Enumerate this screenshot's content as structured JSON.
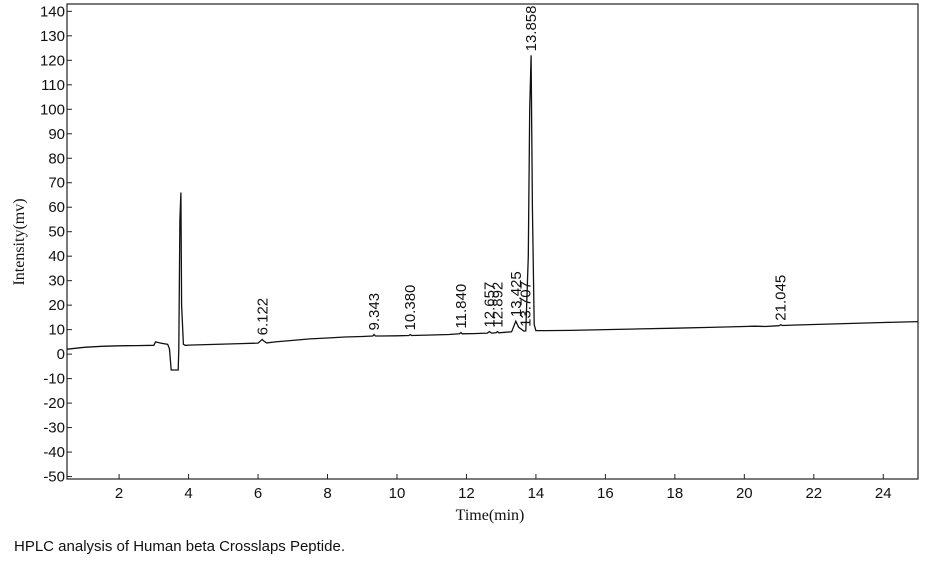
{
  "caption": "HPLC analysis of Human beta Crosslaps Peptide.",
  "chart_data": {
    "type": "line",
    "title": "",
    "xlabel": "Time(min)",
    "ylabel": "Intensity(mv)",
    "xlim": [
      0.5,
      25
    ],
    "ylim": [
      -51,
      143
    ],
    "x_ticks": [
      2,
      4,
      6,
      8,
      10,
      12,
      14,
      16,
      18,
      20,
      22,
      24
    ],
    "y_ticks": [
      -50,
      -40,
      -30,
      -20,
      -10,
      0,
      10,
      20,
      30,
      40,
      50,
      60,
      70,
      80,
      90,
      100,
      110,
      120,
      130,
      140
    ],
    "grid": false,
    "series": [
      {
        "x": [
          0.5,
          1.0,
          1.5,
          2.0,
          2.5,
          3.0,
          3.05,
          3.2,
          3.4,
          3.45,
          3.5,
          3.55,
          3.7,
          3.72,
          3.75,
          3.78,
          3.8,
          3.85,
          3.9,
          3.95,
          4.0,
          4.5,
          5.0,
          5.5,
          6.0,
          6.08,
          6.12,
          6.16,
          6.25,
          6.5,
          7.0,
          7.5,
          8.0,
          8.5,
          9.0,
          9.3,
          9.34,
          9.38,
          9.5,
          10.0,
          10.34,
          10.38,
          10.42,
          11.0,
          11.5,
          11.8,
          11.84,
          11.88,
          12.2,
          12.6,
          12.66,
          12.72,
          12.85,
          12.89,
          12.93,
          13.1,
          13.3,
          13.42,
          13.5,
          13.65,
          13.71,
          13.78,
          13.82,
          13.86,
          13.9,
          13.95,
          14.0,
          14.1,
          14.3,
          15.0,
          16.0,
          17.0,
          18.0,
          19.0,
          20.0,
          20.3,
          20.6,
          21.0,
          21.05,
          21.1,
          21.5,
          22.0,
          23.0,
          24.0,
          25.0
        ],
        "y": [
          2,
          2.8,
          3.2,
          3.4,
          3.5,
          3.6,
          5,
          4.5,
          4,
          2,
          -6.5,
          -6.5,
          -6.5,
          2,
          55,
          66,
          20,
          4,
          3.6,
          3.6,
          3.7,
          3.9,
          4.1,
          4.3,
          4.5,
          5.5,
          6,
          5.4,
          4.6,
          5,
          5.6,
          6.2,
          6.6,
          7,
          7.2,
          7.4,
          8,
          7.4,
          7.4,
          7.5,
          7.6,
          8,
          7.6,
          7.8,
          8,
          8.3,
          8.8,
          8.3,
          8.4,
          8.6,
          9.2,
          8.6,
          8.7,
          9.2,
          8.7,
          8.9,
          9.1,
          13.5,
          11,
          9.4,
          9.5,
          40,
          100,
          122,
          60,
          12,
          9.6,
          9.6,
          9.6,
          9.7,
          10,
          10.3,
          10.6,
          10.9,
          11.3,
          11.4,
          11.3,
          11.6,
          12,
          11.7,
          11.9,
          12.1,
          12.5,
          12.9,
          13.3
        ]
      }
    ],
    "peaks": [
      {
        "label": "6.122",
        "x": 6.122,
        "y": 6
      },
      {
        "label": "9.343",
        "x": 9.343,
        "y": 8
      },
      {
        "label": "10.380",
        "x": 10.38,
        "y": 8
      },
      {
        "label": "11.840",
        "x": 11.84,
        "y": 8.8
      },
      {
        "label": "12.657",
        "x": 12.657,
        "y": 9.2
      },
      {
        "label": "12.892",
        "x": 12.892,
        "y": 9.2
      },
      {
        "label": "13.425",
        "x": 13.425,
        "y": 13.5
      },
      {
        "label": "13.707",
        "x": 13.707,
        "y": 9.5
      },
      {
        "label": "13.858",
        "x": 13.858,
        "y": 122
      },
      {
        "label": "21.045",
        "x": 21.045,
        "y": 12
      }
    ]
  }
}
